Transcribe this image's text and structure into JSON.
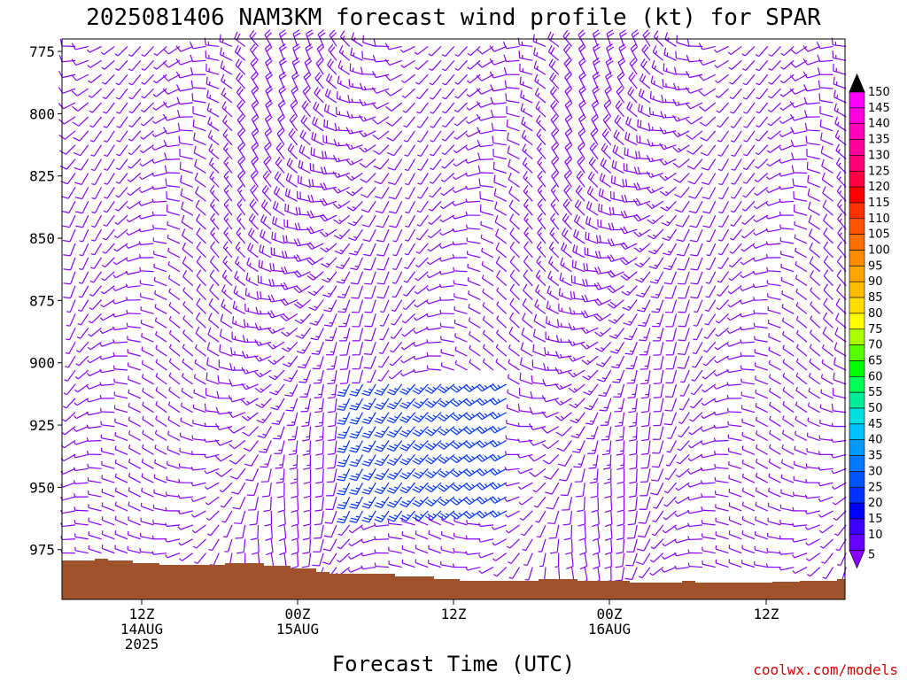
{
  "chart_data": {
    "type": "wind-barb-time-height",
    "title": "2025081406 NAM3KM forecast wind profile (kt) for SPAR",
    "xlabel": "Forecast Time (UTC)",
    "ylabel": "",
    "y_scale": "inverted",
    "y_range_hpa": [
      995,
      770
    ],
    "y_ticks": [
      775,
      800,
      825,
      850,
      875,
      900,
      925,
      950,
      975
    ],
    "x_tick_labels": [
      {
        "lines": [
          "12Z",
          "14AUG",
          "2025"
        ]
      },
      {
        "lines": [
          "00Z",
          "15AUG"
        ]
      },
      {
        "lines": [
          "12Z"
        ]
      },
      {
        "lines": [
          "00Z",
          "16AUG"
        ]
      },
      {
        "lines": [
          "12Z"
        ]
      }
    ],
    "colorbar": {
      "unit": "kt",
      "levels": [
        5,
        10,
        15,
        20,
        25,
        30,
        35,
        40,
        45,
        50,
        55,
        60,
        65,
        70,
        75,
        80,
        85,
        90,
        95,
        100,
        105,
        110,
        115,
        120,
        125,
        130,
        135,
        140,
        145,
        150
      ],
      "colors": [
        "#8a00ff",
        "#6600ff",
        "#3b00ff",
        "#0000ff",
        "#0033ff",
        "#0055ff",
        "#0077ff",
        "#0099ff",
        "#00c0ff",
        "#00e0e0",
        "#00ee99",
        "#00ff55",
        "#00ff00",
        "#55ff00",
        "#aaff00",
        "#ffff00",
        "#ffdd00",
        "#ffbb00",
        "#ffa500",
        "#ff8c00",
        "#ff7000",
        "#ff5500",
        "#ff3300",
        "#ff0000",
        "#ff0044",
        "#ff0077",
        "#ff0099",
        "#ff00bb",
        "#ff00dd",
        "#ff00ff"
      ]
    },
    "terrain_color": "#a0522d",
    "barb_colors": {
      "light": "#8a00ff",
      "moderate": "#0033ff"
    }
  },
  "credit": "coolwx.com/models"
}
